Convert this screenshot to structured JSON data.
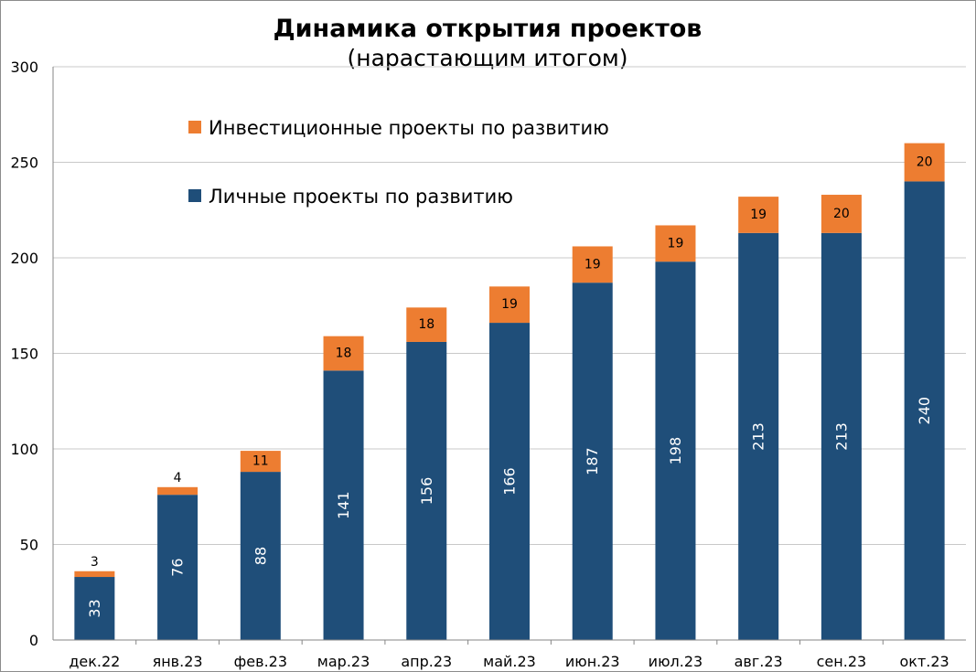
{
  "chart_data": {
    "type": "bar",
    "stacked": true,
    "title": "Динамика открытия проектов",
    "subtitle": "(нарастающим итогом)",
    "categories": [
      "дек.22",
      "янв.23",
      "фев.23",
      "мар.23",
      "апр.23",
      "май.23",
      "июн.23",
      "июл.23",
      "авг.23",
      "сен.23",
      "окт.23"
    ],
    "series": [
      {
        "name": "Личные проекты по развитию",
        "color": "#1f4e79",
        "values": [
          33,
          76,
          88,
          141,
          156,
          166,
          187,
          198,
          213,
          213,
          240
        ]
      },
      {
        "name": "Инвестиционные проекты по развитию",
        "color": "#ed7d31",
        "values": [
          3,
          4,
          11,
          18,
          18,
          19,
          19,
          19,
          19,
          20,
          20
        ]
      }
    ],
    "ylim": [
      0,
      300
    ],
    "yticks": [
      0,
      50,
      100,
      150,
      200,
      250,
      300
    ],
    "grid": true,
    "legend_position": "top-left"
  }
}
